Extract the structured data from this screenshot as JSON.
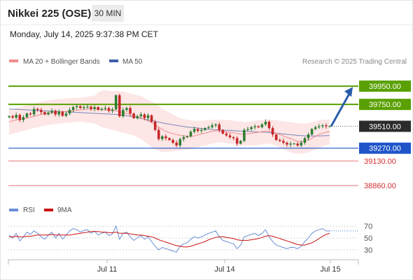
{
  "header": {
    "title": "Nikkei 225 (OSE)",
    "interval": "30 MIN",
    "datetime": "Monday, July 14, 2025 9:37:38 PM CET"
  },
  "legend": {
    "ma20_bb": "MA 20 + Bollinger Bands",
    "ma50": "MA 50",
    "attribution": "Research © 2025 Trading Central",
    "rsi": "RSI",
    "rsi_ma": "9MA"
  },
  "colors": {
    "ma20": "#f08c8c",
    "ma50": "#3f5fa8",
    "band": "#fde2e2",
    "bull": "#2e7d32",
    "bear": "#c62828",
    "resistance": "#5aa000",
    "pivot": "#1f55c9",
    "support": "#e57373",
    "arrow": "#2a5caa",
    "rsi": "#6b8fd6",
    "rsi_ma": "#cc1111"
  },
  "chart_data": [
    {
      "type": "line",
      "title": "",
      "x_ticks": [
        "Jul 11",
        "Jul 14",
        "Jul 15"
      ],
      "ylim": [
        38700,
        40150
      ],
      "levels": [
        {
          "label": "39950.00",
          "value": 39950,
          "kind": "resistance"
        },
        {
          "label": "39750.00",
          "value": 39750,
          "kind": "resistance"
        },
        {
          "label": "39510.00",
          "value": 39510,
          "kind": "last"
        },
        {
          "label": "39270.00",
          "value": 39270,
          "kind": "pivot"
        },
        {
          "label": "39130.00",
          "value": 39130,
          "kind": "support"
        },
        {
          "label": "38860.00",
          "value": 38860,
          "kind": "support"
        }
      ],
      "close": [
        39620,
        39605,
        39635,
        39580,
        39610,
        39650,
        39640,
        39700,
        39690,
        39665,
        39640,
        39660,
        39680,
        39640,
        39670,
        39625,
        39650,
        39690,
        39720,
        39730,
        39710,
        39720,
        39725,
        39700,
        39720,
        39690,
        39700,
        39710,
        39680,
        39695,
        39850,
        39620,
        39690,
        39710,
        39650,
        39600,
        39620,
        39640,
        39600,
        39630,
        39560,
        39470,
        39370,
        39400,
        39380,
        39360,
        39330,
        39300,
        39370,
        39390,
        39400,
        39450,
        39480,
        39460,
        39470,
        39490,
        39500,
        39520,
        39530,
        39470,
        39430,
        39410,
        39390,
        39380,
        39320,
        39350,
        39470,
        39480,
        39500,
        39510,
        39500,
        39530,
        39560,
        39490,
        39420,
        39360,
        39350,
        39330,
        39310,
        39320,
        39320,
        39300,
        39330,
        39380,
        39420,
        39480,
        39500,
        39510,
        39520,
        39510,
        39510
      ],
      "ma20": [
        39560,
        39570,
        39580,
        39585,
        39590,
        39600,
        39610,
        39620,
        39630,
        39640,
        39650,
        39655,
        39660,
        39665,
        39668,
        39670,
        39672,
        39675,
        39680,
        39685,
        39690,
        39695,
        39698,
        39700,
        39705,
        39700,
        39695,
        39690,
        39685,
        39680,
        39680,
        39670,
        39660,
        39650,
        39640,
        39630,
        39615,
        39600,
        39585,
        39570,
        39550,
        39530,
        39500,
        39475,
        39455,
        39440,
        39430,
        39420,
        39410,
        39405,
        39400,
        39400,
        39405,
        39415,
        39425,
        39435,
        39445,
        39455,
        39460,
        39460,
        39455,
        39450,
        39445,
        39440,
        39430,
        39425,
        39425,
        39428,
        39432,
        39438,
        39445,
        39452,
        39458,
        39455,
        39445,
        39435,
        39420,
        39405,
        39390,
        39375,
        39360,
        39345,
        39340,
        39345,
        39360,
        39380,
        39400,
        39420,
        39435,
        39445,
        39450
      ],
      "ma50": [
        39700,
        39698,
        39696,
        39694,
        39692,
        39690,
        39688,
        39686,
        39684,
        39682,
        39680,
        39678,
        39676,
        39674,
        39672,
        39670,
        39668,
        39666,
        39664,
        39662,
        39660,
        39658,
        39656,
        39654,
        39652,
        39650,
        39648,
        39646,
        39644,
        39642,
        39640,
        39635,
        39630,
        39625,
        39620,
        39612,
        39604,
        39596,
        39588,
        39580,
        39572,
        39564,
        39556,
        39548,
        39540,
        39533,
        39526,
        39520,
        39514,
        39508,
        39502,
        39498,
        39494,
        39490,
        39486,
        39482,
        39478,
        39474,
        39472,
        39470,
        39468,
        39466,
        39464,
        39462,
        39460,
        39458,
        39456,
        39454,
        39452,
        39450,
        39448,
        39446,
        39444,
        39442,
        39438,
        39434,
        39430,
        39426,
        39422,
        39418,
        39414,
        39410,
        39408,
        39406,
        39405,
        39404,
        39404,
        39405,
        39406,
        39407,
        39408
      ],
      "bb_upper": [
        39690,
        39700,
        39710,
        39720,
        39730,
        39740,
        39750,
        39760,
        39770,
        39780,
        39790,
        39795,
        39800,
        39805,
        39808,
        39810,
        39815,
        39818,
        39820,
        39822,
        39825,
        39830,
        39835,
        39840,
        39845,
        39880,
        39900,
        39905,
        39900,
        39895,
        39900,
        39895,
        39890,
        39880,
        39870,
        39860,
        39850,
        39840,
        39820,
        39800,
        39780,
        39760,
        39730,
        39700,
        39680,
        39660,
        39640,
        39620,
        39600,
        39590,
        39580,
        39575,
        39570,
        39570,
        39572,
        39575,
        39578,
        39580,
        39582,
        39585,
        39585,
        39580,
        39575,
        39570,
        39565,
        39560,
        39555,
        39560,
        39565,
        39570,
        39575,
        39580,
        39585,
        39585,
        39580,
        39575,
        39570,
        39565,
        39560,
        39555,
        39550,
        39545,
        39540,
        39540,
        39545,
        39555,
        39565,
        39575,
        39580,
        39582,
        39585
      ],
      "bb_lower": [
        39420,
        39430,
        39440,
        39450,
        39460,
        39470,
        39480,
        39490,
        39500,
        39510,
        39520,
        39525,
        39530,
        39535,
        39540,
        39545,
        39548,
        39550,
        39555,
        39560,
        39560,
        39555,
        39550,
        39545,
        39540,
        39520,
        39500,
        39490,
        39480,
        39470,
        39460,
        39450,
        39440,
        39430,
        39420,
        39410,
        39390,
        39370,
        39340,
        39310,
        39280,
        39260,
        39240,
        39230,
        39230,
        39230,
        39235,
        39240,
        39245,
        39250,
        39255,
        39260,
        39270,
        39280,
        39290,
        39300,
        39310,
        39320,
        39330,
        39335,
        39330,
        39325,
        39320,
        39315,
        39300,
        39295,
        39300,
        39300,
        39300,
        39300,
        39305,
        39310,
        39320,
        39320,
        39310,
        39295,
        39280,
        39260,
        39240,
        39225,
        39215,
        39210,
        39210,
        39215,
        39225,
        39240,
        39255,
        39270,
        39285,
        39300,
        39310
      ],
      "arrow": {
        "from_value": 39510,
        "to_value": 39940
      }
    },
    {
      "type": "line",
      "title": "",
      "ylim": [
        18,
        82
      ],
      "y_ticks": [
        30,
        50,
        70
      ],
      "series": [
        {
          "name": "RSI",
          "values": [
            55,
            50,
            58,
            45,
            52,
            60,
            56,
            62,
            58,
            52,
            48,
            55,
            60,
            50,
            58,
            48,
            55,
            62,
            66,
            64,
            60,
            63,
            64,
            58,
            62,
            55,
            58,
            60,
            54,
            57,
            70,
            48,
            58,
            60,
            52,
            46,
            50,
            54,
            48,
            52,
            44,
            36,
            30,
            34,
            32,
            30,
            28,
            26,
            36,
            40,
            42,
            48,
            52,
            50,
            52,
            55,
            58,
            60,
            62,
            52,
            46,
            44,
            42,
            40,
            32,
            38,
            52,
            54,
            56,
            58,
            54,
            58,
            64,
            52,
            44,
            38,
            36,
            34,
            32,
            34,
            34,
            32,
            36,
            44,
            50,
            58,
            62,
            64,
            66,
            62,
            62
          ]
        },
        {
          "name": "9MA",
          "values": [
            52,
            52,
            53,
            52,
            52,
            53,
            53,
            54,
            55,
            55,
            55,
            55,
            56,
            55,
            55,
            55,
            55,
            55,
            56,
            57,
            58,
            59,
            60,
            61,
            61,
            61,
            60,
            60,
            59,
            59,
            60,
            58,
            58,
            58,
            57,
            56,
            55,
            55,
            54,
            53,
            52,
            50,
            47,
            45,
            43,
            41,
            39,
            37,
            36,
            35,
            35,
            36,
            38,
            40,
            42,
            44,
            47,
            49,
            51,
            52,
            52,
            51,
            50,
            49,
            47,
            46,
            46,
            46,
            47,
            48,
            49,
            51,
            53,
            54,
            53,
            51,
            49,
            47,
            45,
            43,
            41,
            39,
            38,
            38,
            40,
            42,
            45,
            49,
            53,
            56,
            58
          ]
        }
      ]
    }
  ]
}
